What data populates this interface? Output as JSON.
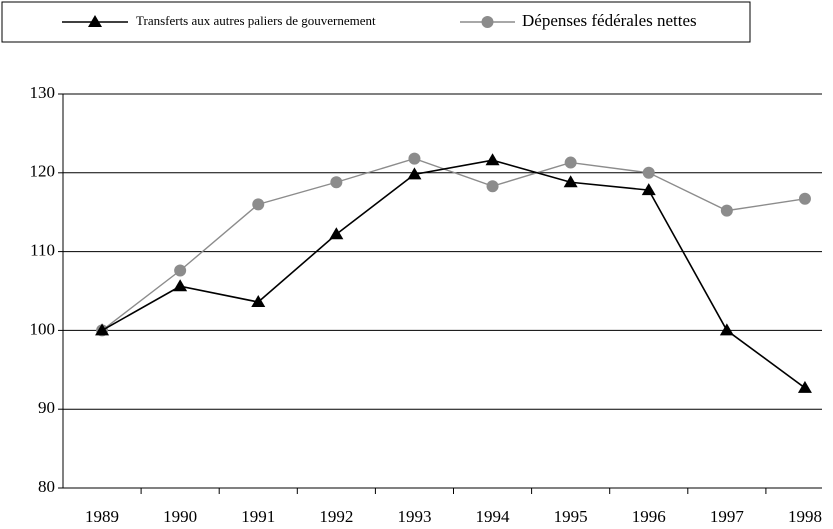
{
  "chart_data": {
    "type": "line",
    "categories": [
      "1989",
      "1990",
      "1991",
      "1992",
      "1993",
      "1994",
      "1995",
      "1996",
      "1997",
      "1998"
    ],
    "series": [
      {
        "name": "Transferts aux autres paliers de gouvernement",
        "color": "#000000",
        "marker": "triangle",
        "values": [
          100,
          105.6,
          103.6,
          112.2,
          119.8,
          121.6,
          118.8,
          117.8,
          100,
          92.7
        ]
      },
      {
        "name": "Dépenses fédérales nettes",
        "color": "#8c8c8c",
        "marker": "circle",
        "values": [
          100,
          107.6,
          116,
          118.8,
          121.8,
          118.3,
          121.3,
          120,
          115.2,
          116.7
        ]
      }
    ],
    "ylim": [
      80,
      130
    ],
    "yticks": [
      80,
      90,
      100,
      110,
      120,
      130
    ],
    "grid": true,
    "legend": "top"
  }
}
